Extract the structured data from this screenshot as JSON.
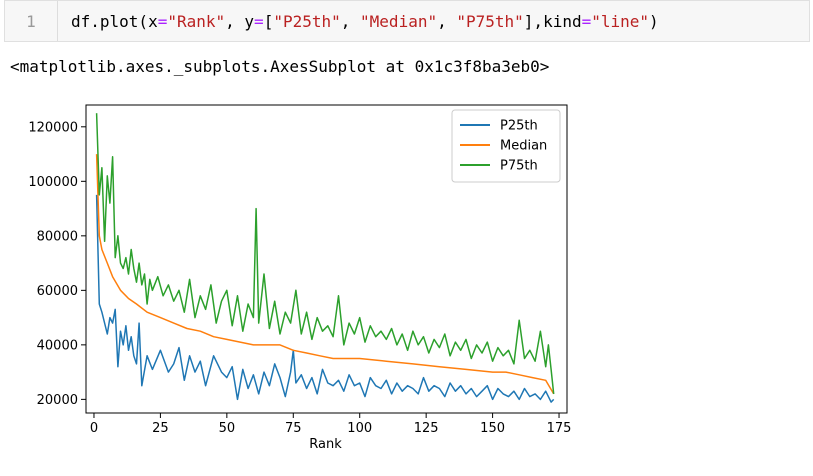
{
  "cell": {
    "line_number": "1",
    "code_parts": {
      "p1": "df.plot(x",
      "eq1": "=",
      "s1": "\"Rank\"",
      "p2": ", y",
      "eq2": "=",
      "p3": "[",
      "s2": "\"P25th\"",
      "p4": ", ",
      "s3": "\"Median\"",
      "p5": ", ",
      "s4": "\"P75th\"",
      "p6": "],kind",
      "eq3": "=",
      "s5": "\"line\"",
      "p7": ")"
    },
    "output": "<matplotlib.axes._subplots.AxesSubplot at 0x1c3f8ba3eb0>"
  },
  "chart_data": {
    "type": "line",
    "xlabel": "Rank",
    "ylabel": "",
    "xlim": [
      -3,
      178
    ],
    "ylim": [
      15000,
      128000
    ],
    "xticks": [
      0,
      25,
      50,
      75,
      100,
      125,
      150,
      175
    ],
    "yticks": [
      20000,
      40000,
      60000,
      80000,
      100000,
      120000
    ],
    "legend_position": "top-right",
    "series": [
      {
        "name": "P25th",
        "color": "#1f77b4",
        "x": [
          1,
          2,
          3,
          5,
          6,
          7,
          8,
          9,
          10,
          11,
          12,
          13,
          14,
          15,
          16,
          17,
          18,
          20,
          22,
          25,
          28,
          30,
          32,
          34,
          36,
          38,
          40,
          42,
          45,
          48,
          50,
          52,
          54,
          56,
          58,
          60,
          62,
          64,
          66,
          68,
          70,
          72,
          74,
          75,
          76,
          78,
          80,
          82,
          84,
          86,
          88,
          90,
          92,
          94,
          96,
          98,
          100,
          102,
          104,
          106,
          108,
          110,
          112,
          114,
          116,
          118,
          120,
          122,
          124,
          126,
          128,
          130,
          132,
          134,
          136,
          138,
          140,
          142,
          144,
          146,
          148,
          150,
          152,
          154,
          156,
          158,
          160,
          162,
          164,
          166,
          168,
          170,
          172,
          173
        ],
        "y": [
          95000,
          55000,
          52000,
          44000,
          50000,
          48000,
          53000,
          32000,
          45000,
          40000,
          47000,
          38000,
          43000,
          36000,
          33000,
          48000,
          25000,
          36000,
          31000,
          38000,
          30000,
          33000,
          39000,
          27000,
          36000,
          30000,
          34000,
          25000,
          36000,
          30000,
          28000,
          32000,
          20000,
          31000,
          24000,
          29000,
          22000,
          30000,
          25000,
          33000,
          28000,
          21000,
          30000,
          38000,
          26000,
          29000,
          24000,
          28000,
          22000,
          31000,
          26000,
          25000,
          27000,
          23000,
          29000,
          25000,
          26000,
          21000,
          28000,
          25000,
          24000,
          27000,
          22000,
          26000,
          23000,
          25000,
          24000,
          22000,
          28000,
          23000,
          25000,
          24000,
          21000,
          26000,
          23000,
          25000,
          22000,
          24000,
          21000,
          23000,
          25000,
          20000,
          24000,
          22000,
          21000,
          23000,
          20000,
          24000,
          21000,
          22000,
          20000,
          23000,
          19000,
          20000
        ]
      },
      {
        "name": "Median",
        "color": "#ff7f0e",
        "x": [
          1,
          2,
          3,
          5,
          7,
          10,
          13,
          16,
          20,
          25,
          30,
          35,
          40,
          45,
          50,
          55,
          60,
          65,
          70,
          75,
          80,
          85,
          90,
          95,
          100,
          110,
          120,
          130,
          140,
          150,
          155,
          160,
          165,
          170,
          173
        ],
        "y": [
          110000,
          80000,
          75000,
          70000,
          65000,
          60000,
          57000,
          55000,
          52000,
          50000,
          48000,
          46000,
          45000,
          43000,
          42000,
          41000,
          40000,
          40000,
          40000,
          38000,
          37000,
          36000,
          35000,
          35000,
          35000,
          34000,
          33000,
          32000,
          31000,
          30000,
          30000,
          29000,
          28000,
          27000,
          22000
        ]
      },
      {
        "name": "P75th",
        "color": "#2ca02c",
        "x": [
          1,
          2,
          3,
          4,
          5,
          6,
          7,
          8,
          9,
          10,
          11,
          12,
          13,
          14,
          15,
          16,
          17,
          18,
          19,
          20,
          21,
          22,
          24,
          26,
          28,
          30,
          32,
          34,
          36,
          38,
          40,
          42,
          44,
          46,
          48,
          50,
          52,
          54,
          56,
          58,
          60,
          61,
          62,
          64,
          66,
          68,
          70,
          72,
          74,
          76,
          78,
          80,
          82,
          84,
          86,
          88,
          90,
          92,
          94,
          96,
          98,
          100,
          102,
          104,
          106,
          108,
          110,
          112,
          114,
          116,
          118,
          120,
          122,
          124,
          126,
          128,
          130,
          132,
          134,
          136,
          138,
          140,
          142,
          144,
          146,
          148,
          150,
          152,
          154,
          156,
          158,
          160,
          162,
          164,
          166,
          168,
          170,
          171,
          172,
          173
        ],
        "y": [
          125000,
          95000,
          105000,
          78000,
          102000,
          92000,
          109000,
          72000,
          80000,
          70000,
          68000,
          72000,
          66000,
          75000,
          68000,
          63000,
          70000,
          62000,
          66000,
          55000,
          64000,
          60000,
          65000,
          58000,
          62000,
          56000,
          60000,
          52000,
          64000,
          50000,
          58000,
          53000,
          62000,
          48000,
          56000,
          60000,
          47000,
          58000,
          45000,
          55000,
          50000,
          90000,
          48000,
          66000,
          46000,
          56000,
          44000,
          52000,
          48000,
          60000,
          44000,
          52000,
          42000,
          50000,
          45000,
          47000,
          43000,
          58000,
          40000,
          48000,
          44000,
          50000,
          41000,
          47000,
          43000,
          45000,
          42000,
          46000,
          40000,
          44000,
          38000,
          45000,
          40000,
          43000,
          37000,
          42000,
          39000,
          44000,
          36000,
          41000,
          38000,
          42000,
          35000,
          40000,
          37000,
          41000,
          34000,
          39000,
          36000,
          38000,
          33000,
          49000,
          35000,
          38000,
          34000,
          45000,
          32000,
          40000,
          31000,
          22000
        ]
      }
    ]
  }
}
